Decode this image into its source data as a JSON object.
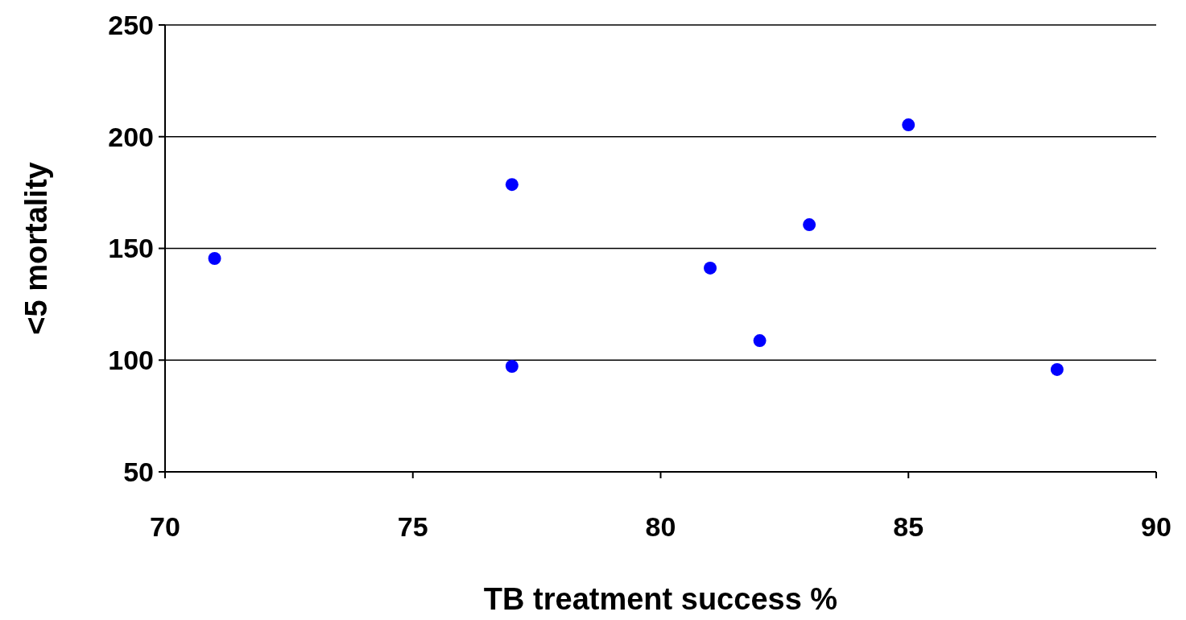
{
  "chart_data": {
    "type": "scatter",
    "xlabel": "TB treatment success %",
    "ylabel": "<5 mortality",
    "x": [
      71,
      77,
      77,
      81,
      82,
      83,
      85,
      88
    ],
    "series": [
      {
        "color": "#0000ff",
        "values": [
          145.5,
          178.6,
          97.2,
          141.2,
          108.7,
          160.6,
          205.3,
          95.8
        ]
      }
    ],
    "xlim": [
      70,
      90
    ],
    "xticks": [
      70,
      75,
      80,
      85,
      90
    ],
    "ylim": [
      50,
      250
    ],
    "yticks": [
      50,
      100,
      150,
      200,
      250
    ],
    "grid": "y",
    "marker": "circle"
  }
}
